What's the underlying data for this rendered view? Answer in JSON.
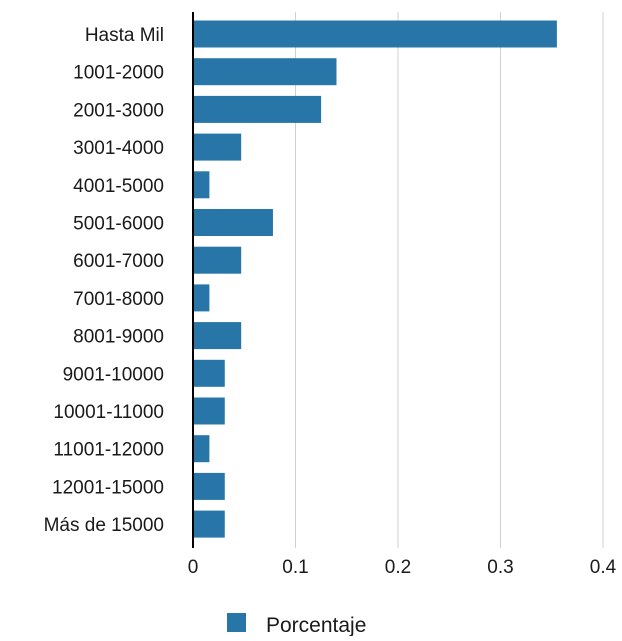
{
  "chart_data": {
    "type": "bar",
    "orientation": "horizontal",
    "categories": [
      "Hasta Mil",
      "1001-2000",
      "2001-3000",
      "3001-4000",
      "4001-5000",
      "5001-6000",
      "6001-7000",
      "7001-8000",
      "8001-9000",
      "9001-10000",
      "10001-11000",
      "11001-12000",
      "12001-15000",
      "Más de 15000"
    ],
    "series": [
      {
        "name": "Porcentaje",
        "color": "#2876a8",
        "values": [
          0.355,
          0.14,
          0.125,
          0.047,
          0.016,
          0.078,
          0.047,
          0.016,
          0.047,
          0.031,
          0.031,
          0.016,
          0.031,
          0.031
        ]
      }
    ],
    "xlim": [
      0,
      0.4
    ],
    "xticks": [
      "0",
      "0.1",
      "0.2",
      "0.3",
      "0.4"
    ],
    "grid": true,
    "legend_position": "bottom"
  }
}
